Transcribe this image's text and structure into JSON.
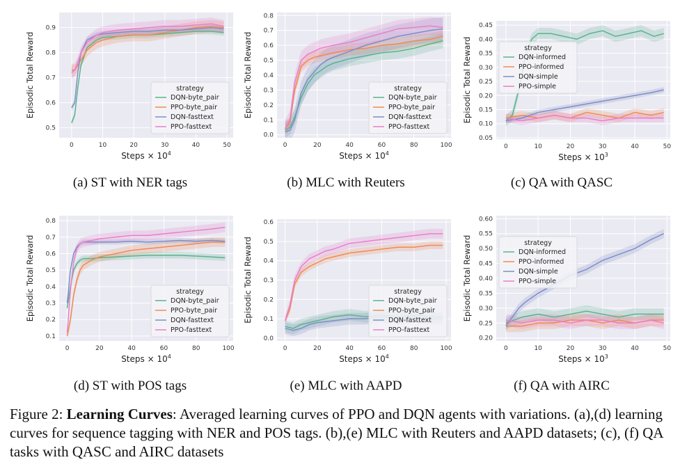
{
  "figure": {
    "caption_label": "Figure 2:",
    "caption_bold": "Learning Curves",
    "caption_rest": ": Averaged learning curves of PPO and DQN agents with variations. (a),(d) learning curves for sequence tagging with NER and POS tags. (b),(e) MLC with Reuters and AAPD datasets; (c), (f) QA tasks with QASC and AIRC datasets"
  },
  "colors": {
    "DQN-byte_pair": "#5ab38d",
    "PPO-byte_pair": "#f08a52",
    "DQN-fasttext": "#7f8dc6",
    "PPO-fasttext": "#e97fc9",
    "DQN-informed": "#5ab38d",
    "PPO-informed": "#f08a52",
    "DQN-simple": "#7f8dc6",
    "PPO-simple": "#e97fc9",
    "plot_bg": "#eaeaf2",
    "grid": "#ffffff"
  },
  "chart_data": [
    {
      "caption": "(a) ST with NER tags",
      "type": "line",
      "xlabel": "Steps × 10",
      "xlabel_exp": "4",
      "ylabel": "Episodic Total Reward",
      "xlim": [
        -4,
        52
      ],
      "ylim": [
        0.46,
        0.96
      ],
      "xticks": [
        0,
        10,
        20,
        30,
        40,
        50
      ],
      "yticks": [
        0.5,
        0.6,
        0.7,
        0.8,
        0.9
      ],
      "legend_title": "strategy",
      "legend_loc": "lower-right",
      "series": [
        {
          "name": "DQN-byte_pair",
          "x": [
            0,
            1,
            2,
            3,
            5,
            8,
            10,
            15,
            20,
            25,
            30,
            35,
            40,
            45,
            49
          ],
          "y": [
            0.52,
            0.55,
            0.66,
            0.75,
            0.82,
            0.85,
            0.86,
            0.865,
            0.87,
            0.87,
            0.875,
            0.88,
            0.885,
            0.885,
            0.88
          ],
          "band": 0.012
        },
        {
          "name": "PPO-byte_pair",
          "x": [
            0,
            1,
            2,
            3,
            5,
            8,
            10,
            15,
            20,
            25,
            30,
            35,
            40,
            45,
            49
          ],
          "y": [
            0.73,
            0.73,
            0.75,
            0.77,
            0.81,
            0.84,
            0.85,
            0.865,
            0.87,
            0.87,
            0.88,
            0.89,
            0.9,
            0.905,
            0.9
          ],
          "band": 0.025
        },
        {
          "name": "DQN-fasttext",
          "x": [
            0,
            1,
            2,
            3,
            5,
            8,
            10,
            15,
            20,
            25,
            30,
            35,
            40,
            45,
            49
          ],
          "y": [
            0.58,
            0.6,
            0.72,
            0.8,
            0.85,
            0.87,
            0.875,
            0.88,
            0.885,
            0.885,
            0.89,
            0.89,
            0.895,
            0.9,
            0.895
          ],
          "band": 0.012
        },
        {
          "name": "PPO-fasttext",
          "x": [
            0,
            1,
            2,
            3,
            5,
            8,
            10,
            15,
            20,
            25,
            30,
            35,
            40,
            45,
            49
          ],
          "y": [
            0.72,
            0.73,
            0.76,
            0.8,
            0.84,
            0.87,
            0.88,
            0.89,
            0.895,
            0.9,
            0.905,
            0.905,
            0.91,
            0.915,
            0.905
          ],
          "band": 0.025
        }
      ]
    },
    {
      "caption": "(b) MLC with Reuters",
      "type": "line",
      "xlabel": "Steps × 10",
      "xlabel_exp": "4",
      "ylabel": "Episodic Total Reward",
      "xlim": [
        -5,
        103
      ],
      "ylim": [
        -0.02,
        0.82
      ],
      "xticks": [
        0,
        20,
        40,
        60,
        80,
        100
      ],
      "yticks": [
        0.0,
        0.1,
        0.2,
        0.3,
        0.4,
        0.5,
        0.6,
        0.7,
        0.8
      ],
      "legend_title": "strategy",
      "legend_loc": "lower-right",
      "series": [
        {
          "name": "DQN-byte_pair",
          "x": [
            0,
            3,
            6,
            10,
            14,
            18,
            22,
            26,
            30,
            40,
            50,
            60,
            70,
            80,
            90,
            98
          ],
          "y": [
            0.03,
            0.05,
            0.12,
            0.25,
            0.34,
            0.4,
            0.43,
            0.46,
            0.48,
            0.51,
            0.53,
            0.55,
            0.56,
            0.58,
            0.61,
            0.63
          ],
          "band": 0.05
        },
        {
          "name": "PPO-byte_pair",
          "x": [
            0,
            3,
            6,
            10,
            14,
            18,
            22,
            26,
            30,
            40,
            50,
            60,
            70,
            80,
            90,
            98
          ],
          "y": [
            0.04,
            0.08,
            0.3,
            0.46,
            0.5,
            0.52,
            0.53,
            0.54,
            0.55,
            0.57,
            0.58,
            0.6,
            0.61,
            0.63,
            0.64,
            0.66
          ],
          "band": 0.04
        },
        {
          "name": "DQN-fasttext",
          "x": [
            0,
            3,
            6,
            10,
            14,
            18,
            22,
            26,
            30,
            40,
            50,
            60,
            70,
            80,
            90,
            98
          ],
          "y": [
            0.02,
            0.03,
            0.1,
            0.28,
            0.37,
            0.42,
            0.47,
            0.5,
            0.52,
            0.56,
            0.6,
            0.63,
            0.66,
            0.68,
            0.7,
            0.71
          ],
          "band": 0.08
        },
        {
          "name": "PPO-fasttext",
          "x": [
            0,
            3,
            6,
            10,
            14,
            18,
            22,
            26,
            30,
            40,
            50,
            60,
            70,
            80,
            90,
            98
          ],
          "y": [
            0.04,
            0.1,
            0.35,
            0.5,
            0.54,
            0.56,
            0.58,
            0.59,
            0.6,
            0.62,
            0.65,
            0.68,
            0.71,
            0.72,
            0.73,
            0.72
          ],
          "band": 0.06
        }
      ]
    },
    {
      "caption": "(c) QA with QASC",
      "type": "line",
      "xlabel": "Steps × 10",
      "xlabel_exp": "3",
      "ylabel": "Episodic Total Reward",
      "xlim": [
        -3,
        51
      ],
      "ylim": [
        0.045,
        0.465
      ],
      "xticks": [
        0,
        10,
        20,
        30,
        40,
        50
      ],
      "yticks": [
        0.05,
        0.1,
        0.15,
        0.2,
        0.25,
        0.3,
        0.35,
        0.4,
        0.45
      ],
      "legend_title": "strategy",
      "legend_loc": "upper-left",
      "series": [
        {
          "name": "DQN-informed",
          "x": [
            0,
            2,
            4,
            6,
            8,
            10,
            14,
            18,
            22,
            26,
            30,
            34,
            38,
            42,
            46,
            49
          ],
          "y": [
            0.11,
            0.13,
            0.22,
            0.34,
            0.4,
            0.42,
            0.42,
            0.41,
            0.4,
            0.42,
            0.43,
            0.41,
            0.42,
            0.43,
            0.41,
            0.42
          ],
          "band": 0.02
        },
        {
          "name": "PPO-informed",
          "x": [
            0,
            5,
            10,
            15,
            20,
            25,
            30,
            35,
            40,
            45,
            49
          ],
          "y": [
            0.12,
            0.13,
            0.12,
            0.13,
            0.12,
            0.14,
            0.13,
            0.12,
            0.14,
            0.13,
            0.14
          ],
          "band": 0.015
        },
        {
          "name": "DQN-simple",
          "x": [
            0,
            5,
            10,
            15,
            20,
            25,
            30,
            35,
            40,
            45,
            49
          ],
          "y": [
            0.11,
            0.12,
            0.14,
            0.15,
            0.16,
            0.17,
            0.18,
            0.19,
            0.2,
            0.21,
            0.22
          ],
          "band": 0.01
        },
        {
          "name": "PPO-simple",
          "x": [
            0,
            5,
            10,
            15,
            20,
            25,
            30,
            35,
            40,
            45,
            49
          ],
          "y": [
            0.12,
            0.11,
            0.12,
            0.13,
            0.12,
            0.12,
            0.11,
            0.12,
            0.12,
            0.12,
            0.12
          ],
          "band": 0.015
        }
      ]
    },
    {
      "caption": "(d) ST with POS tags",
      "type": "line",
      "xlabel": "Steps × 10",
      "xlabel_exp": "4",
      "ylabel": "Episodic Total Reward",
      "xlim": [
        -5,
        103
      ],
      "ylim": [
        0.07,
        0.83
      ],
      "xticks": [
        0,
        20,
        40,
        60,
        80,
        100
      ],
      "yticks": [
        0.1,
        0.2,
        0.3,
        0.4,
        0.5,
        0.6,
        0.7,
        0.8
      ],
      "legend_title": "strategy",
      "legend_loc": "lower-right",
      "series": [
        {
          "name": "DQN-byte_pair",
          "x": [
            0,
            2,
            4,
            6,
            8,
            10,
            15,
            20,
            30,
            40,
            50,
            60,
            70,
            80,
            90,
            98
          ],
          "y": [
            0.27,
            0.4,
            0.5,
            0.54,
            0.56,
            0.57,
            0.57,
            0.575,
            0.58,
            0.585,
            0.59,
            0.59,
            0.59,
            0.585,
            0.58,
            0.575
          ],
          "band": 0.02
        },
        {
          "name": "PPO-byte_pair",
          "x": [
            0,
            2,
            4,
            6,
            8,
            10,
            15,
            20,
            30,
            40,
            50,
            60,
            70,
            80,
            90,
            98
          ],
          "y": [
            0.1,
            0.2,
            0.35,
            0.44,
            0.5,
            0.53,
            0.56,
            0.58,
            0.6,
            0.62,
            0.63,
            0.64,
            0.65,
            0.66,
            0.67,
            0.67
          ],
          "band": 0.03
        },
        {
          "name": "DQN-fasttext",
          "x": [
            0,
            2,
            4,
            6,
            8,
            10,
            15,
            20,
            30,
            40,
            50,
            60,
            70,
            80,
            90,
            98
          ],
          "y": [
            0.3,
            0.5,
            0.6,
            0.64,
            0.66,
            0.67,
            0.67,
            0.67,
            0.67,
            0.675,
            0.67,
            0.675,
            0.68,
            0.675,
            0.68,
            0.675
          ],
          "band": 0.015
        },
        {
          "name": "PPO-fasttext",
          "x": [
            0,
            2,
            4,
            6,
            8,
            10,
            15,
            20,
            30,
            40,
            50,
            60,
            70,
            80,
            90,
            98
          ],
          "y": [
            0.12,
            0.38,
            0.55,
            0.63,
            0.66,
            0.67,
            0.68,
            0.69,
            0.7,
            0.71,
            0.71,
            0.72,
            0.73,
            0.74,
            0.75,
            0.76
          ],
          "band": 0.03
        }
      ]
    },
    {
      "caption": "(e) MLC with AAPD",
      "type": "line",
      "xlabel": "Steps × 10",
      "xlabel_exp": "4",
      "ylabel": "Episodic Total Reward",
      "xlim": [
        -5,
        103
      ],
      "ylim": [
        -0.015,
        0.615
      ],
      "xticks": [
        0,
        20,
        40,
        60,
        80,
        100
      ],
      "yticks": [
        0.0,
        0.1,
        0.2,
        0.3,
        0.4,
        0.5,
        0.6
      ],
      "legend_title": "strategy",
      "legend_loc": "lower-right",
      "series": [
        {
          "name": "DQN-byte_pair",
          "x": [
            0,
            5,
            10,
            15,
            20,
            30,
            40,
            50,
            60,
            70,
            80,
            90,
            98
          ],
          "y": [
            0.06,
            0.05,
            0.07,
            0.08,
            0.09,
            0.11,
            0.12,
            0.11,
            0.12,
            0.11,
            0.12,
            0.11,
            0.11
          ],
          "band": 0.03
        },
        {
          "name": "PPO-byte_pair",
          "x": [
            0,
            3,
            6,
            10,
            15,
            20,
            25,
            30,
            40,
            50,
            60,
            70,
            80,
            90,
            98
          ],
          "y": [
            0.09,
            0.15,
            0.28,
            0.34,
            0.37,
            0.39,
            0.41,
            0.42,
            0.44,
            0.45,
            0.46,
            0.47,
            0.47,
            0.48,
            0.48
          ],
          "band": 0.02
        },
        {
          "name": "DQN-fasttext",
          "x": [
            0,
            5,
            10,
            15,
            20,
            30,
            40,
            50,
            60,
            70,
            80,
            90,
            98
          ],
          "y": [
            0.05,
            0.04,
            0.05,
            0.07,
            0.08,
            0.09,
            0.1,
            0.1,
            0.11,
            0.1,
            0.11,
            0.1,
            0.1
          ],
          "band": 0.03
        },
        {
          "name": "PPO-fasttext",
          "x": [
            0,
            3,
            6,
            10,
            15,
            20,
            25,
            30,
            40,
            50,
            60,
            70,
            80,
            90,
            98
          ],
          "y": [
            0.09,
            0.17,
            0.3,
            0.37,
            0.41,
            0.43,
            0.45,
            0.46,
            0.49,
            0.5,
            0.51,
            0.52,
            0.53,
            0.54,
            0.54
          ],
          "band": 0.025
        }
      ]
    },
    {
      "caption": "(f) QA with AIRC",
      "type": "line",
      "xlabel": "Steps × 10",
      "xlabel_exp": "3",
      "ylabel": "Episodic Total Reward",
      "xlim": [
        -3,
        51
      ],
      "ylim": [
        0.19,
        0.61
      ],
      "xticks": [
        0,
        10,
        20,
        30,
        40,
        50
      ],
      "yticks": [
        0.2,
        0.25,
        0.3,
        0.35,
        0.4,
        0.45,
        0.5,
        0.55,
        0.6
      ],
      "legend_title": "strategy",
      "legend_loc": "upper-left",
      "series": [
        {
          "name": "DQN-informed",
          "x": [
            0,
            5,
            10,
            15,
            20,
            25,
            30,
            35,
            40,
            45,
            49
          ],
          "y": [
            0.25,
            0.27,
            0.28,
            0.27,
            0.28,
            0.29,
            0.28,
            0.27,
            0.28,
            0.28,
            0.28
          ],
          "band": 0.02
        },
        {
          "name": "PPO-informed",
          "x": [
            0,
            5,
            10,
            15,
            20,
            25,
            30,
            35,
            40,
            45,
            49
          ],
          "y": [
            0.24,
            0.24,
            0.25,
            0.25,
            0.26,
            0.26,
            0.25,
            0.26,
            0.25,
            0.26,
            0.26
          ],
          "band": 0.02
        },
        {
          "name": "DQN-simple",
          "x": [
            0,
            2,
            4,
            6,
            10,
            15,
            20,
            25,
            30,
            35,
            40,
            45,
            49
          ],
          "y": [
            0.24,
            0.27,
            0.3,
            0.32,
            0.35,
            0.38,
            0.41,
            0.43,
            0.46,
            0.48,
            0.5,
            0.53,
            0.55
          ],
          "band": 0.015
        },
        {
          "name": "PPO-simple",
          "x": [
            0,
            5,
            10,
            15,
            20,
            25,
            30,
            35,
            40,
            45,
            49
          ],
          "y": [
            0.26,
            0.25,
            0.26,
            0.26,
            0.25,
            0.26,
            0.26,
            0.25,
            0.25,
            0.26,
            0.25
          ],
          "band": 0.02
        }
      ]
    }
  ]
}
